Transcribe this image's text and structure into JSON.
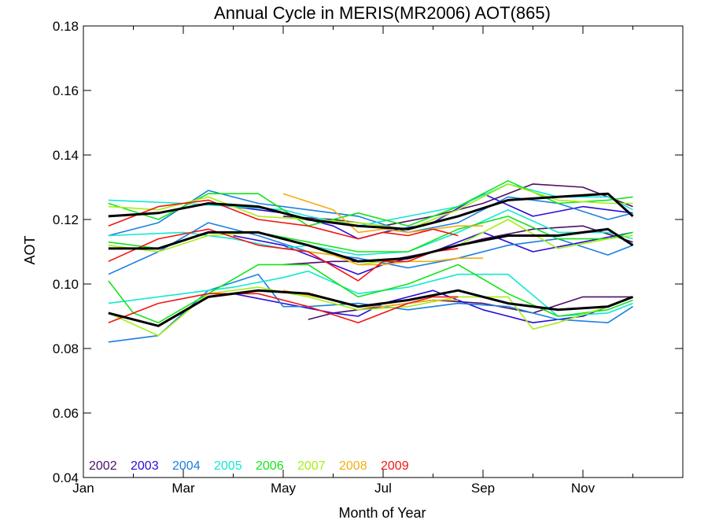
{
  "colors": {
    "2002": "#4b0f66",
    "2003": "#2a0cd8",
    "2004": "#1a7fe0",
    "2005": "#12e8d2",
    "2006": "#14e41a",
    "2007": "#a6ee18",
    "2008": "#f3ad10",
    "2009": "#f21414",
    "mean": "#000000"
  },
  "chart_data": {
    "type": "line",
    "title": "Annual Cycle in MERIS(MR2006) AOT(865)",
    "xlabel": "Month of Year",
    "ylabel": "AOT",
    "xlim": [
      1,
      13
    ],
    "ylim": [
      0.04,
      0.18
    ],
    "x_ticks": [
      {
        "x": 1,
        "label": "Jan"
      },
      {
        "x": 3,
        "label": "Mar"
      },
      {
        "x": 5,
        "label": "May"
      },
      {
        "x": 7,
        "label": "Jul"
      },
      {
        "x": 9,
        "label": "Sep"
      },
      {
        "x": 11,
        "label": "Nov"
      }
    ],
    "y_ticks": [
      0.04,
      0.06,
      0.08,
      0.1,
      0.12,
      0.14,
      0.16,
      0.18
    ],
    "y_tick_labels": [
      "0.04",
      "0.06",
      "0.08",
      "0.10",
      "0.12",
      "0.14",
      "0.16",
      "0.18"
    ],
    "grid": false,
    "legend_position": "bottom-left",
    "legend": [
      "2002",
      "2003",
      "2004",
      "2005",
      "2006",
      "2007",
      "2008",
      "2009"
    ],
    "series": [
      {
        "name": "2002",
        "group": "upper",
        "x": [
          5,
          6,
          7,
          8,
          9,
          10,
          11,
          12
        ],
        "y": [
          0.121,
          0.12,
          0.118,
          0.121,
          0.125,
          0.131,
          0.13,
          0.124
        ]
      },
      {
        "name": "2002",
        "group": "middle",
        "x": [
          5,
          6,
          7,
          8,
          9,
          10,
          11,
          12
        ],
        "y": [
          0.106,
          0.107,
          0.107,
          0.11,
          0.114,
          0.117,
          0.118,
          0.113
        ]
      },
      {
        "name": "2002",
        "group": "lower",
        "x": [
          5.5,
          6,
          7,
          8,
          9,
          10,
          11,
          12
        ],
        "y": [
          0.089,
          0.091,
          0.093,
          0.095,
          0.094,
          0.091,
          0.096,
          0.096
        ]
      },
      {
        "name": "2003",
        "group": "upper",
        "x": [
          4,
          5,
          6,
          6.5,
          7,
          8,
          9,
          10,
          11,
          12
        ],
        "y": [
          0.124,
          0.122,
          0.118,
          0.114,
          0.116,
          0.119,
          0.128,
          0.121,
          0.124,
          0.122
        ]
      },
      {
        "name": "2003",
        "group": "middle",
        "x": [
          4,
          5,
          6,
          6.5,
          7,
          8,
          9,
          10,
          11,
          12
        ],
        "y": [
          0.115,
          0.112,
          0.106,
          0.103,
          0.106,
          0.11,
          0.116,
          0.11,
          0.113,
          0.116
        ]
      },
      {
        "name": "2003",
        "group": "lower",
        "x": [
          4,
          5,
          6,
          6.5,
          7,
          8,
          9,
          10,
          11,
          12
        ],
        "y": [
          0.097,
          0.094,
          0.091,
          0.09,
          0.094,
          0.098,
          0.092,
          0.088,
          0.09,
          0.096
        ]
      },
      {
        "name": "2004",
        "group": "upper",
        "x": [
          1.5,
          2.5,
          3.5,
          4.5,
          5.5,
          6.5,
          7.5,
          8.5,
          9.5,
          10.5,
          11.5,
          12
        ],
        "y": [
          0.115,
          0.119,
          0.129,
          0.125,
          0.123,
          0.121,
          0.116,
          0.119,
          0.127,
          0.125,
          0.12,
          0.122
        ]
      },
      {
        "name": "2004",
        "group": "middle",
        "x": [
          1.5,
          2.5,
          3.5,
          4.5,
          5.5,
          6.5,
          7.5,
          8.5,
          9.5,
          10.5,
          11.5,
          12
        ],
        "y": [
          0.103,
          0.11,
          0.119,
          0.115,
          0.11,
          0.108,
          0.105,
          0.108,
          0.112,
          0.114,
          0.109,
          0.112
        ]
      },
      {
        "name": "2004",
        "group": "lower",
        "x": [
          1.5,
          2.5,
          3.5,
          4.5,
          5,
          5.5,
          6.5,
          7.5,
          8.5,
          9.5,
          10.5,
          11.5,
          12
        ],
        "y": [
          0.082,
          0.084,
          0.098,
          0.103,
          0.093,
          0.093,
          0.094,
          0.092,
          0.094,
          0.093,
          0.089,
          0.088,
          0.093
        ]
      },
      {
        "name": "2005",
        "group": "upper",
        "x": [
          1.5,
          3,
          4,
          5,
          5.5,
          6.5,
          7.5,
          8.5,
          9.5,
          10.5,
          11.5,
          12
        ],
        "y": [
          0.126,
          0.125,
          0.124,
          0.123,
          0.121,
          0.118,
          0.121,
          0.124,
          0.131,
          0.127,
          0.127,
          0.123
        ]
      },
      {
        "name": "2005",
        "group": "middle",
        "x": [
          1.5,
          3,
          4,
          5,
          5.5,
          6.5,
          7.5,
          8.5,
          9.5,
          10.5,
          11.5,
          12
        ],
        "y": [
          0.115,
          0.116,
          0.114,
          0.111,
          0.112,
          0.109,
          0.11,
          0.116,
          0.123,
          0.116,
          0.116,
          0.114
        ]
      },
      {
        "name": "2005",
        "group": "lower",
        "x": [
          1.5,
          3,
          4,
          5,
          5.5,
          6.5,
          7.5,
          8.5,
          9.5,
          10.5,
          11.5,
          12
        ],
        "y": [
          0.094,
          0.097,
          0.099,
          0.102,
          0.104,
          0.097,
          0.099,
          0.103,
          0.103,
          0.09,
          0.091,
          0.094
        ]
      },
      {
        "name": "2006",
        "group": "upper",
        "x": [
          1.5,
          2.5,
          3.5,
          4.5,
          5.5,
          6.5,
          7.5,
          8.5,
          9.5,
          10.5,
          11.5,
          12
        ],
        "y": [
          0.125,
          0.12,
          0.128,
          0.128,
          0.118,
          0.122,
          0.118,
          0.124,
          0.132,
          0.125,
          0.126,
          0.127
        ]
      },
      {
        "name": "2006",
        "group": "middle",
        "x": [
          1.5,
          2.5,
          3.5,
          4.5,
          5.5,
          6.5,
          7.5,
          8.5,
          9.5,
          10.5,
          11.5,
          12
        ],
        "y": [
          0.113,
          0.111,
          0.116,
          0.116,
          0.113,
          0.11,
          0.11,
          0.117,
          0.121,
          0.114,
          0.114,
          0.116
        ]
      },
      {
        "name": "2006",
        "group": "lower",
        "x": [
          1.5,
          2,
          2.5,
          3.5,
          4.5,
          5.5,
          6.5,
          7.5,
          8.5,
          9.5,
          10.5,
          11.5,
          12
        ],
        "y": [
          0.101,
          0.091,
          0.088,
          0.097,
          0.106,
          0.106,
          0.096,
          0.1,
          0.106,
          0.097,
          0.09,
          0.092,
          0.095
        ]
      },
      {
        "name": "2007",
        "group": "upper",
        "x": [
          1.5,
          2.5,
          3.5,
          4.5,
          5.5,
          6.5,
          7.5,
          8.5,
          9.5,
          10.5,
          11.5,
          12
        ],
        "y": [
          0.124,
          0.123,
          0.127,
          0.121,
          0.12,
          0.119,
          0.117,
          0.123,
          0.131,
          0.126,
          0.125,
          0.125
        ]
      },
      {
        "name": "2007",
        "group": "middle",
        "x": [
          1.5,
          2.5,
          3.5,
          4.5,
          5.5,
          6.5,
          7.5,
          8.5,
          9.5,
          10.5,
          11.5,
          12
        ],
        "y": [
          0.112,
          0.11,
          0.115,
          0.116,
          0.112,
          0.106,
          0.108,
          0.112,
          0.12,
          0.111,
          0.114,
          0.115
        ]
      },
      {
        "name": "2007",
        "group": "lower",
        "x": [
          1.5,
          2.5,
          3.5,
          4.5,
          5.5,
          6.5,
          7.5,
          8.5,
          9.5,
          10,
          10.5,
          11.5,
          12
        ],
        "y": [
          0.091,
          0.084,
          0.097,
          0.099,
          0.096,
          0.092,
          0.093,
          0.096,
          0.096,
          0.086,
          0.088,
          0.093,
          0.096
        ]
      },
      {
        "name": "2008",
        "group": "upper",
        "x": [
          5,
          6,
          6.5,
          7,
          7.5,
          8,
          8.5,
          9
        ],
        "y": [
          0.128,
          0.123,
          0.116,
          0.117,
          0.116,
          0.117,
          0.118,
          0.118
        ]
      },
      {
        "name": "2008",
        "group": "middle",
        "x": [
          5,
          6,
          6.5,
          7,
          7.5,
          8,
          8.5,
          9
        ],
        "y": [
          0.111,
          0.109,
          0.106,
          0.106,
          0.107,
          0.107,
          0.108,
          0.108
        ]
      },
      {
        "name": "2008",
        "group": "lower",
        "x": [
          5,
          6,
          6.5,
          7,
          7.5,
          8,
          8.5
        ],
        "y": [
          0.098,
          0.095,
          0.093,
          0.093,
          0.094,
          0.095,
          0.095
        ]
      },
      {
        "name": "2009",
        "group": "upper",
        "x": [
          1.5,
          2.5,
          3.5,
          4.5,
          5.5,
          6.5,
          7,
          7.5,
          8,
          8.5
        ],
        "y": [
          0.118,
          0.124,
          0.126,
          0.12,
          0.118,
          0.114,
          0.116,
          0.115,
          0.117,
          0.115
        ]
      },
      {
        "name": "2009",
        "group": "middle",
        "x": [
          1.5,
          2.5,
          3.5,
          4.5,
          5.5,
          6.5,
          7,
          7.5,
          8,
          8.5
        ],
        "y": [
          0.107,
          0.114,
          0.117,
          0.112,
          0.11,
          0.101,
          0.107,
          0.107,
          0.11,
          0.111
        ]
      },
      {
        "name": "2009",
        "group": "lower",
        "x": [
          1.5,
          2.5,
          3.5,
          4.5,
          5.5,
          6.5,
          7,
          7.5,
          8,
          8.5
        ],
        "y": [
          0.088,
          0.094,
          0.097,
          0.097,
          0.093,
          0.088,
          0.091,
          0.094,
          0.096,
          0.096
        ]
      },
      {
        "name": "mean",
        "group": "upper",
        "color_key": "mean",
        "x": [
          1.5,
          2.5,
          3.5,
          4.5,
          5.5,
          6.5,
          7.5,
          8.5,
          9.5,
          10.5,
          11.5,
          12
        ],
        "y": [
          0.121,
          0.122,
          0.125,
          0.124,
          0.12,
          0.118,
          0.117,
          0.121,
          0.126,
          0.127,
          0.128,
          0.121
        ]
      },
      {
        "name": "mean",
        "group": "middle",
        "color_key": "mean",
        "x": [
          1.5,
          2.5,
          3.5,
          4.5,
          5.5,
          6.5,
          7.5,
          8.5,
          9.5,
          10.5,
          11.5,
          12
        ],
        "y": [
          0.111,
          0.111,
          0.116,
          0.116,
          0.112,
          0.107,
          0.108,
          0.112,
          0.115,
          0.115,
          0.117,
          0.112
        ]
      },
      {
        "name": "mean",
        "group": "lower",
        "color_key": "mean",
        "x": [
          1.5,
          2.5,
          3.5,
          4.5,
          5.5,
          6.5,
          7.5,
          8.5,
          9.5,
          10.5,
          11.5,
          12
        ],
        "y": [
          0.091,
          0.087,
          0.096,
          0.098,
          0.097,
          0.093,
          0.095,
          0.098,
          0.094,
          0.092,
          0.093,
          0.096
        ]
      }
    ]
  }
}
